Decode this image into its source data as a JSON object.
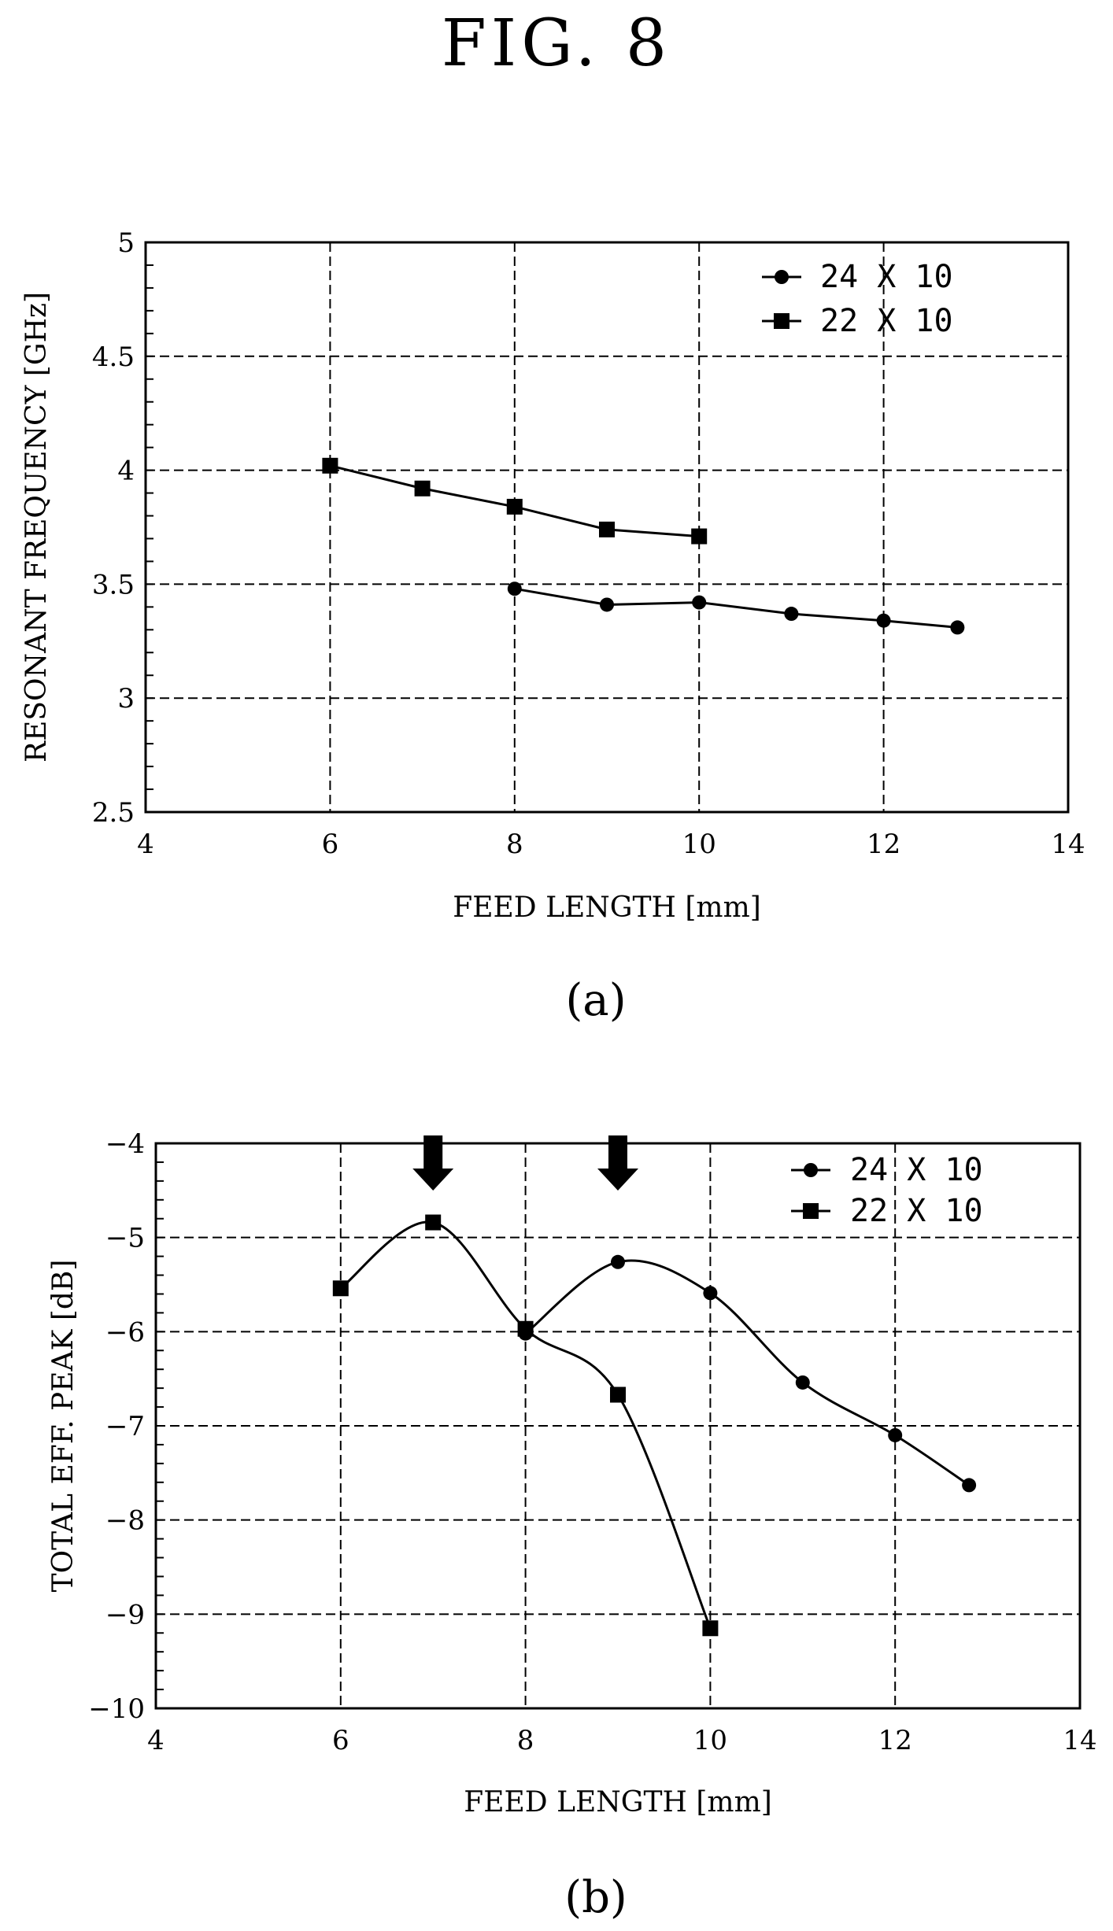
{
  "figure_title": "FIG.  8",
  "chart_data": [
    {
      "type": "line",
      "caption": "(a)",
      "xlabel": "FEED LENGTH [mm]",
      "ylabel": "RESONANT FREQUENCY [GHz]",
      "xlim": [
        4,
        14
      ],
      "ylim": [
        2.5,
        5
      ],
      "x_ticks": [
        4,
        6,
        8,
        10,
        12,
        14
      ],
      "y_ticks": [
        2.5,
        3,
        3.5,
        4,
        4.5,
        5
      ],
      "grid": true,
      "legend_position": "top-right",
      "series": [
        {
          "name": "24 X 10",
          "marker": "circle",
          "x": [
            8,
            9,
            10,
            11,
            12,
            12.8
          ],
          "y": [
            3.48,
            3.41,
            3.42,
            3.37,
            3.34,
            3.31
          ]
        },
        {
          "name": "22 X 10",
          "marker": "square",
          "x": [
            6,
            7,
            8,
            9,
            10
          ],
          "y": [
            4.02,
            3.92,
            3.84,
            3.74,
            3.71
          ]
        }
      ]
    },
    {
      "type": "line",
      "caption": "(b)",
      "xlabel": "FEED LENGTH [mm]",
      "ylabel": "TOTAL EFF. PEAK [dB]",
      "xlim": [
        4,
        14
      ],
      "ylim": [
        -10,
        -4
      ],
      "x_ticks": [
        4,
        6,
        8,
        10,
        12,
        14
      ],
      "y_ticks": [
        -10,
        -9,
        -8,
        -7,
        -6,
        -5,
        -4
      ],
      "grid": true,
      "legend_position": "top-right",
      "series": [
        {
          "name": "24 X 10",
          "marker": "circle",
          "x": [
            8,
            9,
            10,
            11,
            12,
            12.8
          ],
          "y": [
            -6.02,
            -5.26,
            -5.59,
            -6.54,
            -7.1,
            -7.63
          ]
        },
        {
          "name": "22 X 10",
          "marker": "square",
          "x": [
            6,
            7,
            8,
            9,
            10
          ],
          "y": [
            -5.54,
            -4.84,
            -5.97,
            -6.67,
            -9.15
          ]
        }
      ],
      "annotations": [
        {
          "type": "down-arrow",
          "x": 7
        },
        {
          "type": "down-arrow",
          "x": 9
        }
      ]
    }
  ]
}
